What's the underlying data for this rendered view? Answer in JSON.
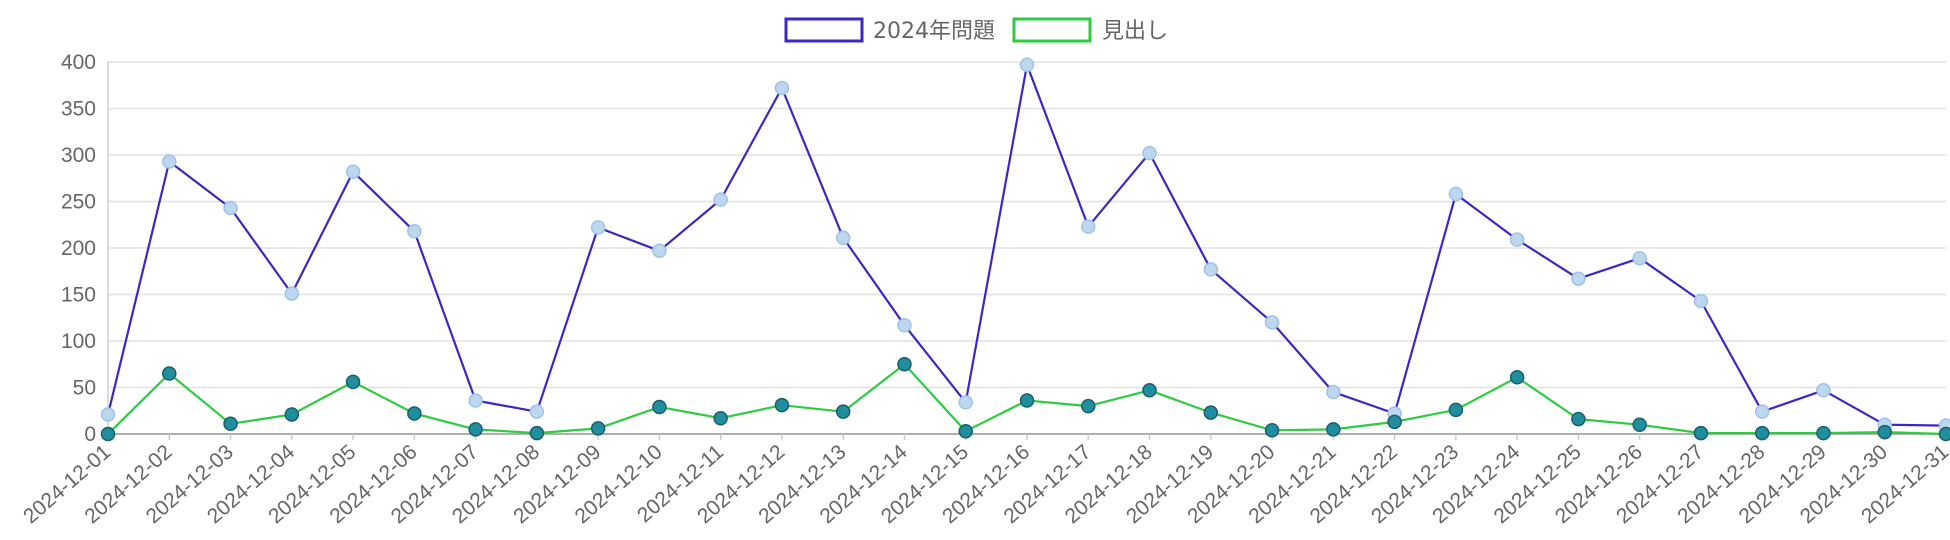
{
  "chart_data": {
    "type": "line",
    "x": [
      "2024-12-01",
      "2024-12-02",
      "2024-12-03",
      "2024-12-04",
      "2024-12-05",
      "2024-12-06",
      "2024-12-07",
      "2024-12-08",
      "2024-12-09",
      "2024-12-10",
      "2024-12-11",
      "2024-12-12",
      "2024-12-13",
      "2024-12-14",
      "2024-12-15",
      "2024-12-16",
      "2024-12-17",
      "2024-12-18",
      "2024-12-19",
      "2024-12-20",
      "2024-12-21",
      "2024-12-22",
      "2024-12-23",
      "2024-12-24",
      "2024-12-25",
      "2024-12-26",
      "2024-12-27",
      "2024-12-28",
      "2024-12-29",
      "2024-12-30",
      "2024-12-31"
    ],
    "series": [
      {
        "name": "2024年問題",
        "color": "#3b27c4",
        "marker_color": "#bcd7ee",
        "values": [
          21,
          293,
          243,
          151,
          282,
          218,
          36,
          24,
          222,
          197,
          252,
          372,
          211,
          117,
          34,
          397,
          223,
          302,
          177,
          120,
          45,
          22,
          258,
          209,
          167,
          189,
          143,
          24,
          47,
          10,
          9
        ]
      },
      {
        "name": "見出し",
        "color": "#2ecc40",
        "marker_color": "#1f8fa0",
        "values": [
          0,
          65,
          11,
          21,
          56,
          22,
          5,
          1,
          6,
          29,
          17,
          31,
          24,
          75,
          3,
          36,
          30,
          47,
          23,
          4,
          5,
          13,
          26,
          61,
          16,
          10,
          1,
          1,
          1,
          2,
          0
        ]
      }
    ],
    "yticks": [
      "0",
      "50",
      "100",
      "150",
      "200",
      "250",
      "300",
      "350",
      "400"
    ],
    "ylim": [
      0,
      400
    ],
    "grid": true,
    "legend": "top-center",
    "title": "",
    "xlabel": "",
    "ylabel": ""
  }
}
